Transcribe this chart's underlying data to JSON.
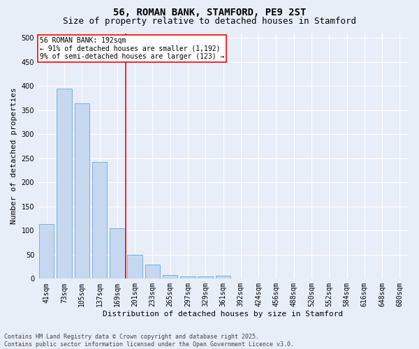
{
  "title": "56, ROMAN BANK, STAMFORD, PE9 2ST",
  "subtitle": "Size of property relative to detached houses in Stamford",
  "xlabel": "Distribution of detached houses by size in Stamford",
  "ylabel": "Number of detached properties",
  "categories": [
    "41sqm",
    "73sqm",
    "105sqm",
    "137sqm",
    "169sqm",
    "201sqm",
    "233sqm",
    "265sqm",
    "297sqm",
    "329sqm",
    "361sqm",
    "392sqm",
    "424sqm",
    "456sqm",
    "488sqm",
    "520sqm",
    "552sqm",
    "584sqm",
    "616sqm",
    "648sqm",
    "680sqm"
  ],
  "values": [
    113,
    395,
    365,
    242,
    105,
    50,
    30,
    8,
    5,
    5,
    6,
    0,
    0,
    0,
    0,
    0,
    0,
    0,
    0,
    0,
    1
  ],
  "bar_color": "#c5d8f0",
  "bar_edge_color": "#6aaad4",
  "vline_position": 4.5,
  "vline_color": "red",
  "annotation_text": "56 ROMAN BANK: 192sqm\n← 91% of detached houses are smaller (1,192)\n9% of semi-detached houses are larger (123) →",
  "ylim": [
    0,
    510
  ],
  "yticks": [
    0,
    50,
    100,
    150,
    200,
    250,
    300,
    350,
    400,
    450,
    500
  ],
  "footnote_line1": "Contains HM Land Registry data © Crown copyright and database right 2025.",
  "footnote_line2": "Contains public sector information licensed under the Open Government Licence v3.0.",
  "bg_color": "#e8eef8",
  "grid_color": "#ffffff",
  "title_fontsize": 10,
  "subtitle_fontsize": 9,
  "axis_label_fontsize": 8,
  "tick_fontsize": 7,
  "annot_fontsize": 7,
  "footnote_fontsize": 6
}
